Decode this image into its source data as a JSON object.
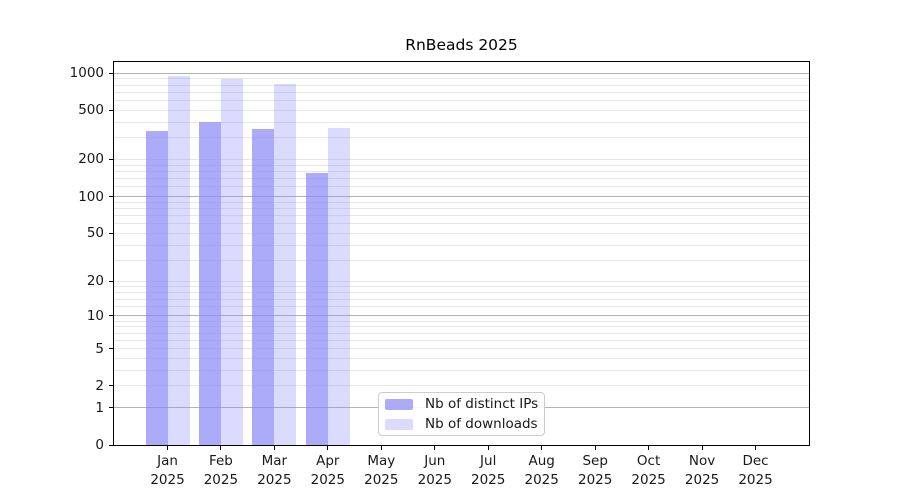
{
  "chart_data": {
    "type": "bar",
    "title": "RnBeads 2025",
    "categories": [
      "Jan",
      "Feb",
      "Mar",
      "Apr",
      "May",
      "Jun",
      "Jul",
      "Aug",
      "Sep",
      "Oct",
      "Nov",
      "Dec"
    ],
    "year_label": "2025",
    "series": [
      {
        "name": "Nb of distinct IPs",
        "color": "#8888f8",
        "alpha": 0.7,
        "values": [
          340,
          400,
          350,
          155,
          0,
          0,
          0,
          0,
          0,
          0,
          0,
          0
        ]
      },
      {
        "name": "Nb of downloads",
        "color": "#8888f8",
        "alpha": 0.3,
        "values": [
          940,
          895,
          815,
          360,
          0,
          0,
          0,
          0,
          0,
          0,
          0,
          0
        ]
      }
    ],
    "y_scale": "log10(1+v)",
    "y_ticks": [
      0,
      1,
      2,
      5,
      10,
      20,
      50,
      100,
      200,
      500,
      1000
    ],
    "ylim": [
      0,
      1000
    ],
    "xlabel": "",
    "ylabel": "",
    "grid": true,
    "legend_position": "inside lower-center-left"
  },
  "axis_style": {
    "major_gridlines": [
      1,
      10,
      100,
      1000
    ],
    "minor_gridlines": [
      2,
      3,
      4,
      5,
      6,
      7,
      8,
      9,
      12,
      14,
      16,
      18,
      20,
      30,
      40,
      50,
      60,
      70,
      80,
      90,
      120,
      140,
      160,
      180,
      200,
      300,
      400,
      500,
      600,
      700,
      800,
      900
    ],
    "major_grid_color": "#b3b3b3",
    "minor_grid_color": "#e7e7e7",
    "spine_color": "#000000",
    "text_color": "#191919",
    "legend_border_color": "#cccccc",
    "background": "#ffffff"
  }
}
